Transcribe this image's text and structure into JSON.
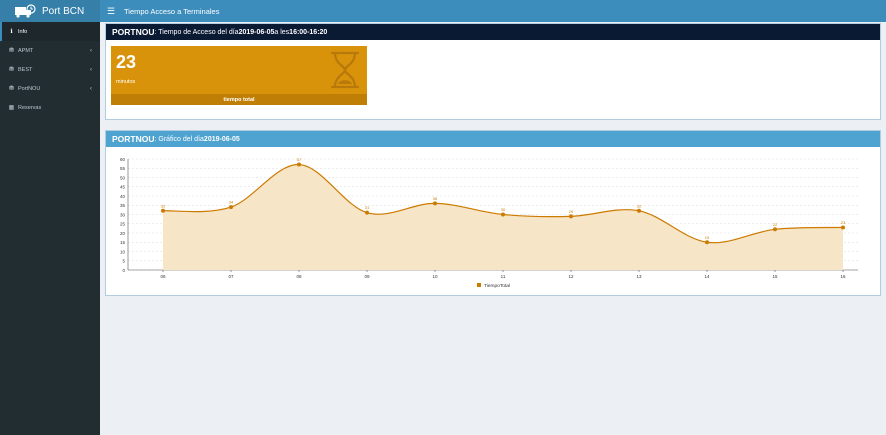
{
  "app": {
    "name": "Port BCN",
    "page_title": "Tiempo Acceso a Terminales"
  },
  "sidebar": {
    "items": [
      {
        "label": "Info",
        "icon": "info-icon",
        "active": true,
        "has_children": false
      },
      {
        "label": "APMT",
        "icon": "truck-icon",
        "active": false,
        "has_children": true
      },
      {
        "label": "BEST",
        "icon": "truck-icon",
        "active": false,
        "has_children": true
      },
      {
        "label": "PortNOU",
        "icon": "truck-icon",
        "active": false,
        "has_children": true
      },
      {
        "label": "Reservas",
        "icon": "calendar-icon",
        "active": false,
        "has_children": false
      }
    ]
  },
  "summary": {
    "terminal": "PORTNOU",
    "prefix": ": Tiempo de Acceso del día ",
    "date": "2019-06-05",
    "middle": " a les ",
    "time_range": "16:00-16:20",
    "tile": {
      "value": "23",
      "unit": "minutos",
      "footer": "tiempo total",
      "icon": "hourglass-icon"
    }
  },
  "chart_box": {
    "terminal": "PORTNOU",
    "prefix": ": Gráfico del día ",
    "date": "2019-06-05"
  },
  "colors": {
    "header_dark": "#0b1a33",
    "header_light": "#4fa3d1",
    "accent": "#d8930b",
    "line": "#cc7a00",
    "fill": "#f6e5c6"
  },
  "chart_data": {
    "type": "area",
    "categories": [
      "06",
      "07",
      "08",
      "09",
      "10",
      "11",
      "12",
      "13",
      "14",
      "15",
      "16"
    ],
    "series": [
      {
        "name": "TiempoTotal",
        "values": [
          32,
          34,
          57,
          31,
          36,
          30,
          29,
          32,
          15,
          22,
          23
        ]
      }
    ],
    "ylim": [
      0,
      60
    ],
    "yticks": [
      0,
      5,
      10,
      15,
      20,
      25,
      30,
      35,
      40,
      45,
      50,
      55,
      60
    ],
    "grid": true,
    "legend": "bottom"
  }
}
